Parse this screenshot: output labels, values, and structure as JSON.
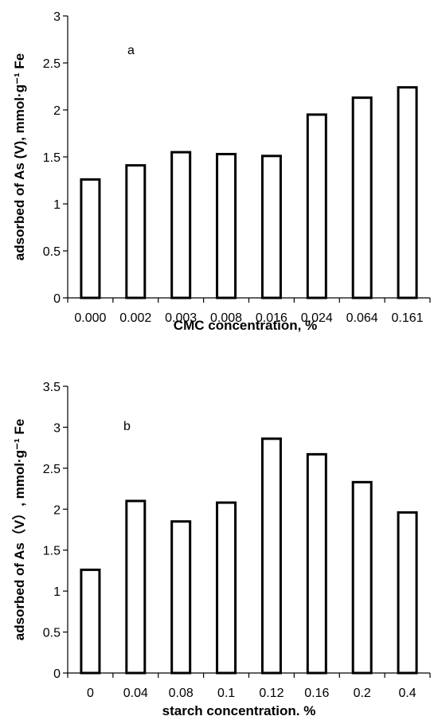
{
  "chart_data": [
    {
      "type": "bar",
      "panel_label": "a",
      "categories": [
        "0.000",
        "0.002",
        "0.003",
        "0.008",
        "0.016",
        "0.024",
        "0.064",
        "0.161"
      ],
      "values": [
        1.26,
        1.41,
        1.55,
        1.53,
        1.51,
        1.95,
        2.13,
        2.24
      ],
      "xlabel": "CMC concentration, %",
      "ylabel": "adsorbed of As (V), mmol·g⁻¹ Fe",
      "ylim": [
        0,
        3
      ],
      "yticks": [
        0,
        0.5,
        1,
        1.5,
        2,
        2.5,
        3
      ],
      "ytick_labels": [
        "0",
        "0.5",
        "1",
        "1.5",
        "2",
        "2.5",
        "3"
      ],
      "grid": false,
      "bar_fill": "#ffffff",
      "bar_stroke": "#000000"
    },
    {
      "type": "bar",
      "panel_label": "b",
      "categories": [
        "0",
        "0.04",
        "0.08",
        "0.1",
        "0.12",
        "0.16",
        "0.2",
        "0.4"
      ],
      "values": [
        1.26,
        2.1,
        1.85,
        2.08,
        2.86,
        2.67,
        2.33,
        1.96
      ],
      "xlabel": "starch concentration. %",
      "ylabel": "adsorbed of As（V）, mmol·g⁻¹ Fe",
      "ylim": [
        0,
        3.5
      ],
      "yticks": [
        0,
        0.5,
        1,
        1.5,
        2,
        2.5,
        3,
        3.5
      ],
      "ytick_labels": [
        "0",
        "0.5",
        "1",
        "1.5",
        "2",
        "2.5",
        "3",
        "3.5"
      ],
      "grid": false,
      "bar_fill": "#ffffff",
      "bar_stroke": "#000000"
    }
  ]
}
